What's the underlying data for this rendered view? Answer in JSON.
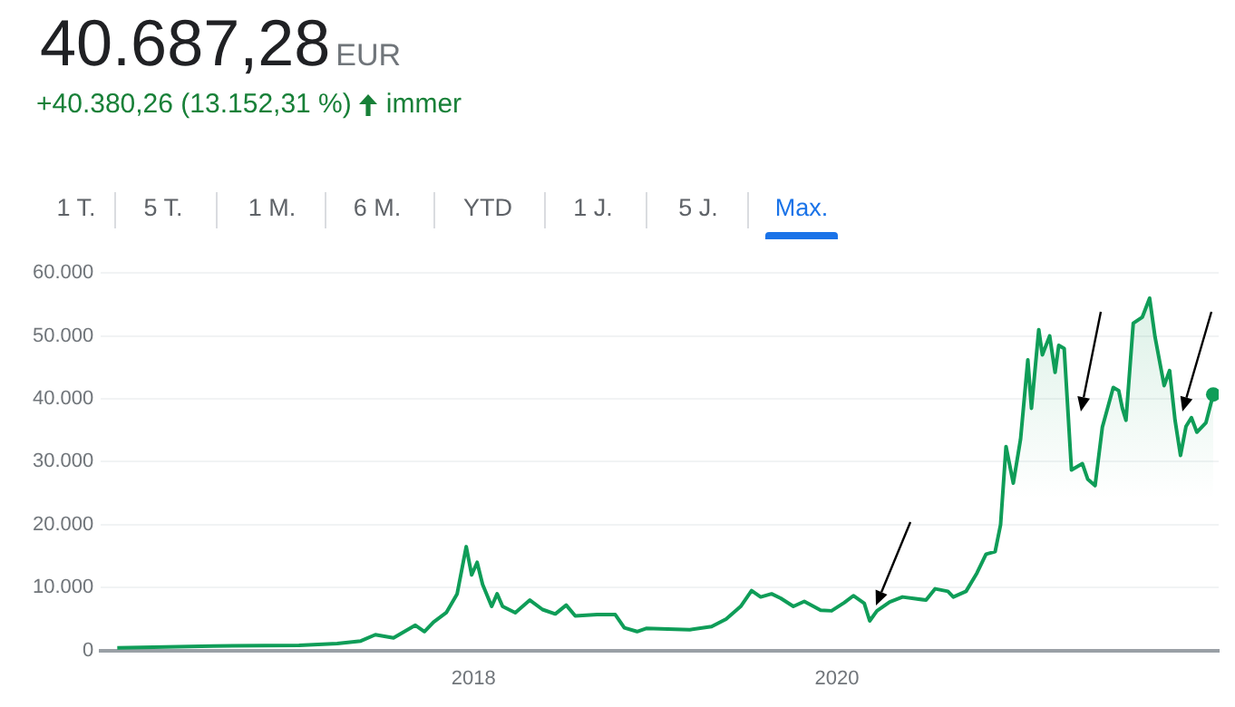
{
  "chart_data": {
    "type": "area",
    "title": "40.687,28",
    "subtitle": "+40.380,26 (13.152,31 %)",
    "annotations": [
      "EUR",
      "immer",
      "1 T.",
      "5 T.",
      "1 M.",
      "6 M.",
      "YTD",
      "1 J.",
      "5 J.",
      "Max."
    ],
    "x": [
      2016.04,
      2016.57,
      2017.04,
      2017.25,
      2017.38,
      2017.46,
      2017.56,
      2017.68,
      2017.73,
      2017.78,
      2017.85,
      2017.91,
      2017.96,
      2017.99,
      2018.02,
      2018.05,
      2018.1,
      2018.13,
      2018.16,
      2018.23,
      2018.31,
      2018.38,
      2018.45,
      2018.51,
      2018.56,
      2018.68,
      2018.78,
      2018.83,
      2018.9,
      2018.95,
      2019.19,
      2019.31,
      2019.39,
      2019.47,
      2019.53,
      2019.58,
      2019.64,
      2019.69,
      2019.76,
      2019.82,
      2019.91,
      2019.97,
      2020.04,
      2020.09,
      2020.15,
      2020.18,
      2020.22,
      2020.29,
      2020.36,
      2020.49,
      2020.54,
      2020.61,
      2020.64,
      2020.71,
      2020.77,
      2020.82,
      2020.87,
      2020.9,
      2020.93,
      2020.97,
      2021.01,
      2021.05,
      2021.07,
      2021.11,
      2021.13,
      2021.17,
      2021.2,
      2021.22,
      2021.25,
      2021.29,
      2021.35,
      2021.38,
      2021.42,
      2021.46,
      2021.52,
      2021.55,
      2021.57,
      2021.59,
      2021.63,
      2021.68,
      2021.72,
      2021.75,
      2021.8,
      2021.83,
      2021.86,
      2021.89,
      2021.92,
      2021.95,
      2021.98,
      2022.03,
      2022.07
    ],
    "series": [
      {
        "color": "#0f9d58",
        "values": [
          400,
          700,
          800,
          1100,
          1500,
          2500,
          2000,
          4000,
          3000,
          4500,
          6000,
          9000,
          16500,
          12000,
          14000,
          10500,
          7000,
          9000,
          7000,
          6000,
          8000,
          6500,
          5800,
          7200,
          5500,
          5700,
          5700,
          3600,
          3000,
          3500,
          3300,
          3800,
          5000,
          7000,
          9500,
          8500,
          9000,
          8300,
          7000,
          7800,
          6400,
          6300,
          7600,
          8700,
          7500,
          4700,
          6300,
          7700,
          8500,
          8000,
          9800,
          9400,
          8500,
          9400,
          12300,
          15300,
          15700,
          20000,
          32400,
          26600,
          33600,
          46200,
          38500,
          51000,
          47000,
          50000,
          44200,
          48500,
          48000,
          28700,
          29700,
          27200,
          26200,
          35500,
          41800,
          41300,
          38500,
          36600,
          52000,
          53000,
          56000,
          49800,
          42100,
          44500,
          36600,
          31000,
          35600,
          37000,
          34700,
          36200,
          40700
        ]
      }
    ],
    "xlim": [
      2015.95,
      2022.1
    ],
    "xticks": [
      2018,
      2020
    ],
    "ylim": [
      0,
      60000
    ],
    "yticks": [
      {
        "value": 0,
        "label": "0"
      },
      {
        "value": 10000,
        "label": "10.000"
      },
      {
        "value": 20000,
        "label": "20.000"
      },
      {
        "value": 30000,
        "label": "30.000"
      },
      {
        "value": 40000,
        "label": "40.000"
      },
      {
        "value": 50000,
        "label": "50.000"
      },
      {
        "value": 60000,
        "label": "60.000"
      }
    ],
    "grid": "y",
    "line_style": "solid"
  }
}
